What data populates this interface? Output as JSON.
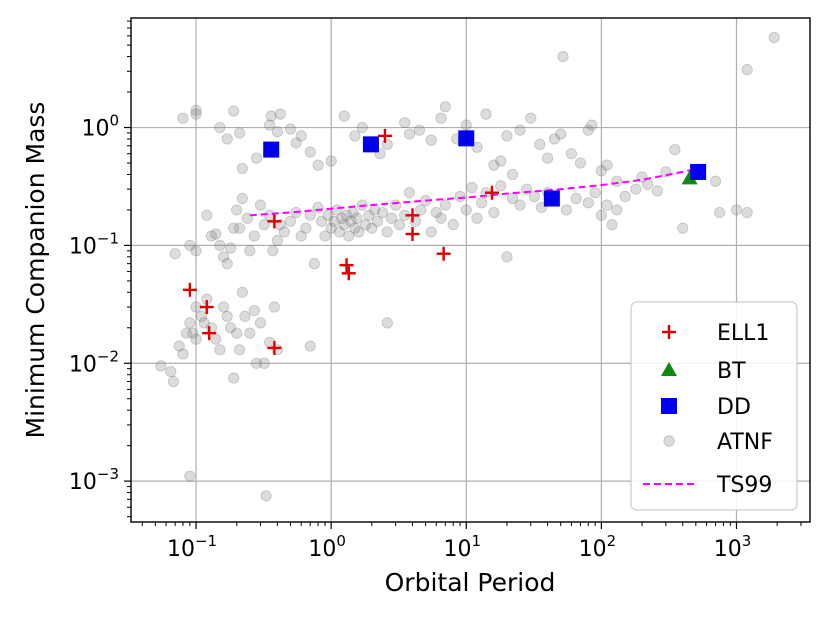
{
  "chart_data": {
    "type": "scatter",
    "title": "",
    "xlabel": "Orbital Period",
    "ylabel": "Minimum Companion Mass",
    "xscale": "log",
    "yscale": "log",
    "xlim": [
      0.033,
      3500
    ],
    "ylim": [
      0.00045,
      8.5
    ],
    "grid": true,
    "legend_position": "lower-right",
    "x_tick_base": "10",
    "x_ticks": [
      {
        "value": 0.1,
        "exp": "−1"
      },
      {
        "value": 1,
        "exp": "0"
      },
      {
        "value": 10,
        "exp": "1"
      },
      {
        "value": 100,
        "exp": "2"
      },
      {
        "value": 1000,
        "exp": "3"
      }
    ],
    "y_ticks": [
      {
        "value": 0.001,
        "exp": "−3"
      },
      {
        "value": 0.01,
        "exp": "−2"
      },
      {
        "value": 0.1,
        "exp": "−1"
      },
      {
        "value": 1,
        "exp": "0"
      }
    ],
    "series": [
      {
        "name": "ATNF",
        "marker": "circle",
        "color": "#888888",
        "points": [
          [
            0.08,
            1.2
          ],
          [
            0.1,
            1.3
          ],
          [
            0.1,
            1.4
          ],
          [
            0.15,
            1.0
          ],
          [
            0.17,
            0.8
          ],
          [
            0.19,
            1.38
          ],
          [
            0.21,
            0.9
          ],
          [
            0.22,
            0.45
          ],
          [
            0.28,
            0.55
          ],
          [
            0.35,
            1.05
          ],
          [
            0.36,
            1.25
          ],
          [
            0.4,
            0.92
          ],
          [
            0.42,
            1.3
          ],
          [
            0.5,
            0.97
          ],
          [
            0.55,
            0.74
          ],
          [
            0.6,
            0.85
          ],
          [
            0.7,
            0.62
          ],
          [
            0.8,
            0.48
          ],
          [
            1.0,
            0.52
          ],
          [
            1.25,
            1.25
          ],
          [
            1.5,
            0.85
          ],
          [
            1.7,
            1.0
          ],
          [
            2.3,
            0.6
          ],
          [
            2.6,
            0.72
          ],
          [
            3.5,
            1.1
          ],
          [
            3.8,
            0.88
          ],
          [
            4.5,
            0.95
          ],
          [
            5.5,
            0.78
          ],
          [
            6.5,
            1.2
          ],
          [
            7.0,
            1.5
          ],
          [
            8.5,
            0.8
          ],
          [
            10.0,
            1.05
          ],
          [
            12.0,
            0.68
          ],
          [
            14.0,
            1.3
          ],
          [
            16.0,
            0.48
          ],
          [
            18.0,
            0.52
          ],
          [
            20.0,
            0.85
          ],
          [
            22.0,
            0.4
          ],
          [
            25.0,
            0.95
          ],
          [
            30.0,
            1.2
          ],
          [
            35.0,
            0.72
          ],
          [
            40.0,
            0.55
          ],
          [
            45.0,
            0.8
          ],
          [
            50.0,
            0.88
          ],
          [
            52.0,
            4.0
          ],
          [
            60.0,
            0.6
          ],
          [
            70.0,
            0.5
          ],
          [
            80.0,
            0.95
          ],
          [
            85.0,
            1.05
          ],
          [
            100.0,
            0.43
          ],
          [
            110.0,
            0.48
          ],
          [
            130.0,
            0.35
          ],
          [
            200.0,
            0.38
          ],
          [
            300.0,
            0.42
          ],
          [
            350.0,
            0.65
          ],
          [
            700.0,
            0.35
          ],
          [
            1200.0,
            3.1
          ],
          [
            1900.0,
            5.8
          ],
          [
            0.07,
            0.085
          ],
          [
            0.09,
            0.1
          ],
          [
            0.1,
            0.09
          ],
          [
            0.12,
            0.18
          ],
          [
            0.13,
            0.12
          ],
          [
            0.14,
            0.125
          ],
          [
            0.15,
            0.1
          ],
          [
            0.16,
            0.08
          ],
          [
            0.17,
            0.07
          ],
          [
            0.18,
            0.095
          ],
          [
            0.19,
            0.14
          ],
          [
            0.2,
            0.2
          ],
          [
            0.21,
            0.14
          ],
          [
            0.22,
            0.25
          ],
          [
            0.24,
            0.17
          ],
          [
            0.25,
            0.09
          ],
          [
            0.27,
            0.12
          ],
          [
            0.3,
            0.22
          ],
          [
            0.32,
            0.15
          ],
          [
            0.35,
            0.18
          ],
          [
            0.37,
            0.09
          ],
          [
            0.4,
            0.11
          ],
          [
            0.42,
            0.15
          ],
          [
            0.45,
            0.13
          ],
          [
            0.5,
            0.16
          ],
          [
            0.55,
            0.19
          ],
          [
            0.6,
            0.12
          ],
          [
            0.65,
            0.14
          ],
          [
            0.7,
            0.18
          ],
          [
            0.75,
            0.07
          ],
          [
            0.8,
            0.21
          ],
          [
            0.85,
            0.16
          ],
          [
            0.9,
            0.12
          ],
          [
            0.95,
            0.18
          ],
          [
            1.0,
            0.14
          ],
          [
            1.05,
            0.16
          ],
          [
            1.1,
            0.2
          ],
          [
            1.15,
            0.13
          ],
          [
            1.2,
            0.17
          ],
          [
            1.25,
            0.15
          ],
          [
            1.3,
            0.18
          ],
          [
            1.35,
            0.12
          ],
          [
            1.4,
            0.16
          ],
          [
            1.45,
            0.19
          ],
          [
            1.5,
            0.14
          ],
          [
            1.55,
            0.17
          ],
          [
            1.6,
            0.13
          ],
          [
            1.7,
            0.22
          ],
          [
            1.8,
            0.15
          ],
          [
            1.9,
            0.18
          ],
          [
            2.0,
            0.14
          ],
          [
            2.1,
            0.2
          ],
          [
            2.2,
            0.16
          ],
          [
            2.4,
            0.19
          ],
          [
            2.6,
            0.13
          ],
          [
            2.8,
            0.17
          ],
          [
            3.0,
            0.22
          ],
          [
            3.2,
            0.15
          ],
          [
            3.5,
            0.18
          ],
          [
            3.8,
            0.28
          ],
          [
            4.2,
            0.16
          ],
          [
            4.6,
            0.2
          ],
          [
            5.0,
            0.24
          ],
          [
            5.5,
            0.13
          ],
          [
            6.0,
            0.19
          ],
          [
            6.5,
            0.17
          ],
          [
            7.0,
            0.22
          ],
          [
            8.0,
            0.15
          ],
          [
            9.0,
            0.26
          ],
          [
            10.0,
            0.2
          ],
          [
            11.0,
            0.31
          ],
          [
            12.0,
            0.17
          ],
          [
            13.0,
            0.23
          ],
          [
            14.0,
            0.28
          ],
          [
            16.0,
            0.19
          ],
          [
            18.0,
            0.32
          ],
          [
            20.0,
            0.08
          ],
          [
            22.0,
            0.25
          ],
          [
            25.0,
            0.22
          ],
          [
            28.0,
            0.3
          ],
          [
            32.0,
            0.26
          ],
          [
            36.0,
            0.21
          ],
          [
            40.0,
            0.28
          ],
          [
            55.0,
            0.2
          ],
          [
            65.0,
            0.25
          ],
          [
            80.0,
            0.23
          ],
          [
            90.0,
            0.28
          ],
          [
            100.0,
            0.18
          ],
          [
            110.0,
            0.22
          ],
          [
            120.0,
            0.15
          ],
          [
            130.0,
            0.2
          ],
          [
            150.0,
            0.26
          ],
          [
            180.0,
            0.3
          ],
          [
            220.0,
            0.33
          ],
          [
            260.0,
            0.29
          ],
          [
            400.0,
            0.14
          ],
          [
            750.0,
            0.19
          ],
          [
            1000.0,
            0.2
          ],
          [
            1200.0,
            0.19
          ],
          [
            0.055,
            0.0095
          ],
          [
            0.065,
            0.0085
          ],
          [
            0.068,
            0.007
          ],
          [
            0.075,
            0.014
          ],
          [
            0.08,
            0.012
          ],
          [
            0.085,
            0.018
          ],
          [
            0.09,
            0.022
          ],
          [
            0.095,
            0.018
          ],
          [
            0.1,
            0.016
          ],
          [
            0.1,
            0.03
          ],
          [
            0.11,
            0.025
          ],
          [
            0.115,
            0.022
          ],
          [
            0.12,
            0.035
          ],
          [
            0.13,
            0.02
          ],
          [
            0.14,
            0.016
          ],
          [
            0.15,
            0.013
          ],
          [
            0.16,
            0.03
          ],
          [
            0.17,
            0.025
          ],
          [
            0.18,
            0.02
          ],
          [
            0.19,
            0.0075
          ],
          [
            0.2,
            0.018
          ],
          [
            0.21,
            0.013
          ],
          [
            0.22,
            0.04
          ],
          [
            0.23,
            0.025
          ],
          [
            0.25,
            0.018
          ],
          [
            0.27,
            0.028
          ],
          [
            0.28,
            0.01
          ],
          [
            0.3,
            0.022
          ],
          [
            0.32,
            0.01
          ],
          [
            0.35,
            0.015
          ],
          [
            0.38,
            0.03
          ],
          [
            0.4,
            0.013
          ],
          [
            0.7,
            0.014
          ],
          [
            2.6,
            0.022
          ],
          [
            0.09,
            0.0011
          ],
          [
            0.33,
            0.00075
          ]
        ]
      },
      {
        "name": "ELL1",
        "marker": "plus",
        "color": "#dd0000",
        "points": [
          [
            0.09,
            0.042
          ],
          [
            0.12,
            0.03
          ],
          [
            0.125,
            0.018
          ],
          [
            0.38,
            0.16
          ],
          [
            0.38,
            0.0135
          ],
          [
            1.3,
            0.068
          ],
          [
            1.35,
            0.058
          ],
          [
            2.5,
            0.85
          ],
          [
            4.0,
            0.18
          ],
          [
            4.0,
            0.125
          ],
          [
            6.8,
            0.085
          ],
          [
            15.5,
            0.28
          ]
        ]
      },
      {
        "name": "BT",
        "marker": "triangle",
        "color": "#118811",
        "points": [
          [
            450,
            0.37
          ]
        ]
      },
      {
        "name": "DD",
        "marker": "square",
        "color": "#0000ee",
        "points": [
          [
            0.36,
            0.65
          ],
          [
            1.97,
            0.72
          ],
          [
            10.0,
            0.81
          ],
          [
            43.0,
            0.25
          ],
          [
            520.0,
            0.42
          ]
        ]
      },
      {
        "name": "TS99",
        "marker": "dashed-line",
        "color": "#ff00ff",
        "points": [
          [
            0.25,
            0.18
          ],
          [
            0.5,
            0.19
          ],
          [
            1,
            0.205
          ],
          [
            2,
            0.22
          ],
          [
            5,
            0.24
          ],
          [
            10,
            0.255
          ],
          [
            20,
            0.275
          ],
          [
            50,
            0.3
          ],
          [
            100,
            0.325
          ],
          [
            200,
            0.36
          ],
          [
            400,
            0.42
          ],
          [
            520,
            0.45
          ]
        ]
      }
    ],
    "legend": [
      "ELL1",
      "BT",
      "DD",
      "ATNF",
      "TS99"
    ]
  }
}
